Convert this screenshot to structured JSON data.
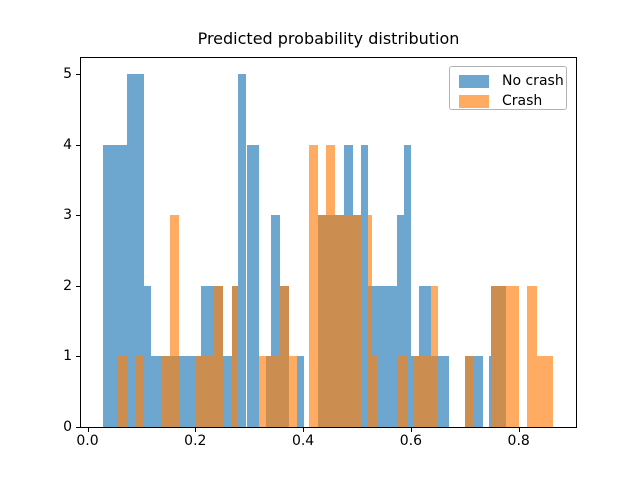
{
  "figure": {
    "title": "Predicted probability distribution",
    "background": "#ffffff"
  },
  "legend": {
    "position": "upper right",
    "items": [
      {
        "label": "No crash",
        "color": "#1f77b4"
      },
      {
        "label": "Crash",
        "color": "#ff7f0e"
      }
    ]
  },
  "axes": {
    "x_tick_labels": [
      "0.0",
      "0.2",
      "0.4",
      "0.6",
      "0.8"
    ],
    "x_tick_values": [
      0.0,
      0.2,
      0.4,
      0.6,
      0.8
    ],
    "y_tick_labels": [
      "0",
      "1",
      "2",
      "3",
      "4",
      "5"
    ],
    "y_tick_values": [
      0,
      1,
      2,
      3,
      4,
      5
    ],
    "xlim": [
      -0.014,
      0.906
    ],
    "ylim": [
      0,
      5.23
    ],
    "grid": false
  },
  "chart_data": {
    "type": "bar",
    "histogram": true,
    "title": "Predicted probability distribution",
    "xlabel": "",
    "ylabel": "",
    "legend_position": "upper right",
    "bar_opacity": 0.65,
    "series": [
      {
        "name": "No crash",
        "color": "#1f77b4",
        "bars": [
          {
            "x0": 0.029,
            "x1": 0.074,
            "count": 4
          },
          {
            "x0": 0.074,
            "x1": 0.104,
            "count": 5
          },
          {
            "x0": 0.104,
            "x1": 0.118,
            "count": 2
          },
          {
            "x0": 0.118,
            "x1": 0.211,
            "count": 1
          },
          {
            "x0": 0.211,
            "x1": 0.251,
            "count": 2
          },
          {
            "x0": 0.251,
            "x1": 0.268,
            "count": 1
          },
          {
            "x0": 0.268,
            "x1": 0.279,
            "count": 2
          },
          {
            "x0": 0.279,
            "x1": 0.295,
            "count": 5
          },
          {
            "x0": 0.295,
            "x1": 0.319,
            "count": 4
          },
          {
            "x0": 0.332,
            "x1": 0.341,
            "count": 1
          },
          {
            "x0": 0.341,
            "x1": 0.358,
            "count": 3
          },
          {
            "x0": 0.358,
            "x1": 0.374,
            "count": 2
          },
          {
            "x0": 0.388,
            "x1": 0.402,
            "count": 1
          },
          {
            "x0": 0.427,
            "x1": 0.476,
            "count": 3
          },
          {
            "x0": 0.476,
            "x1": 0.493,
            "count": 4
          },
          {
            "x0": 0.493,
            "x1": 0.507,
            "count": 3
          },
          {
            "x0": 0.507,
            "x1": 0.521,
            "count": 4
          },
          {
            "x0": 0.521,
            "x1": 0.574,
            "count": 2
          },
          {
            "x0": 0.574,
            "x1": 0.587,
            "count": 3
          },
          {
            "x0": 0.587,
            "x1": 0.6,
            "count": 4
          },
          {
            "x0": 0.6,
            "x1": 0.615,
            "count": 1
          },
          {
            "x0": 0.615,
            "x1": 0.637,
            "count": 2
          },
          {
            "x0": 0.637,
            "x1": 0.671,
            "count": 1
          },
          {
            "x0": 0.7,
            "x1": 0.734,
            "count": 1
          },
          {
            "x0": 0.744,
            "x1": 0.749,
            "count": 1
          },
          {
            "x0": 0.749,
            "x1": 0.776,
            "count": 2
          }
        ]
      },
      {
        "name": "Crash",
        "color": "#ff7f0e",
        "bars": [
          {
            "x0": 0.056,
            "x1": 0.073,
            "count": 1
          },
          {
            "x0": 0.088,
            "x1": 0.104,
            "count": 1
          },
          {
            "x0": 0.138,
            "x1": 0.153,
            "count": 1
          },
          {
            "x0": 0.153,
            "x1": 0.17,
            "count": 3
          },
          {
            "x0": 0.199,
            "x1": 0.235,
            "count": 1
          },
          {
            "x0": 0.235,
            "x1": 0.251,
            "count": 2
          },
          {
            "x0": 0.268,
            "x1": 0.279,
            "count": 2
          },
          {
            "x0": 0.319,
            "x1": 0.358,
            "count": 1
          },
          {
            "x0": 0.358,
            "x1": 0.374,
            "count": 2
          },
          {
            "x0": 0.374,
            "x1": 0.388,
            "count": 1
          },
          {
            "x0": 0.411,
            "x1": 0.427,
            "count": 4
          },
          {
            "x0": 0.427,
            "x1": 0.443,
            "count": 3
          },
          {
            "x0": 0.443,
            "x1": 0.459,
            "count": 4
          },
          {
            "x0": 0.459,
            "x1": 0.507,
            "count": 3
          },
          {
            "x0": 0.521,
            "x1": 0.527,
            "count": 3
          },
          {
            "x0": 0.527,
            "x1": 0.538,
            "count": 1
          },
          {
            "x0": 0.574,
            "x1": 0.595,
            "count": 1
          },
          {
            "x0": 0.606,
            "x1": 0.637,
            "count": 1
          },
          {
            "x0": 0.637,
            "x1": 0.651,
            "count": 2
          },
          {
            "x0": 0.7,
            "x1": 0.716,
            "count": 1
          },
          {
            "x0": 0.749,
            "x1": 0.801,
            "count": 2
          },
          {
            "x0": 0.815,
            "x1": 0.834,
            "count": 2
          },
          {
            "x0": 0.834,
            "x1": 0.863,
            "count": 1
          }
        ]
      }
    ]
  }
}
